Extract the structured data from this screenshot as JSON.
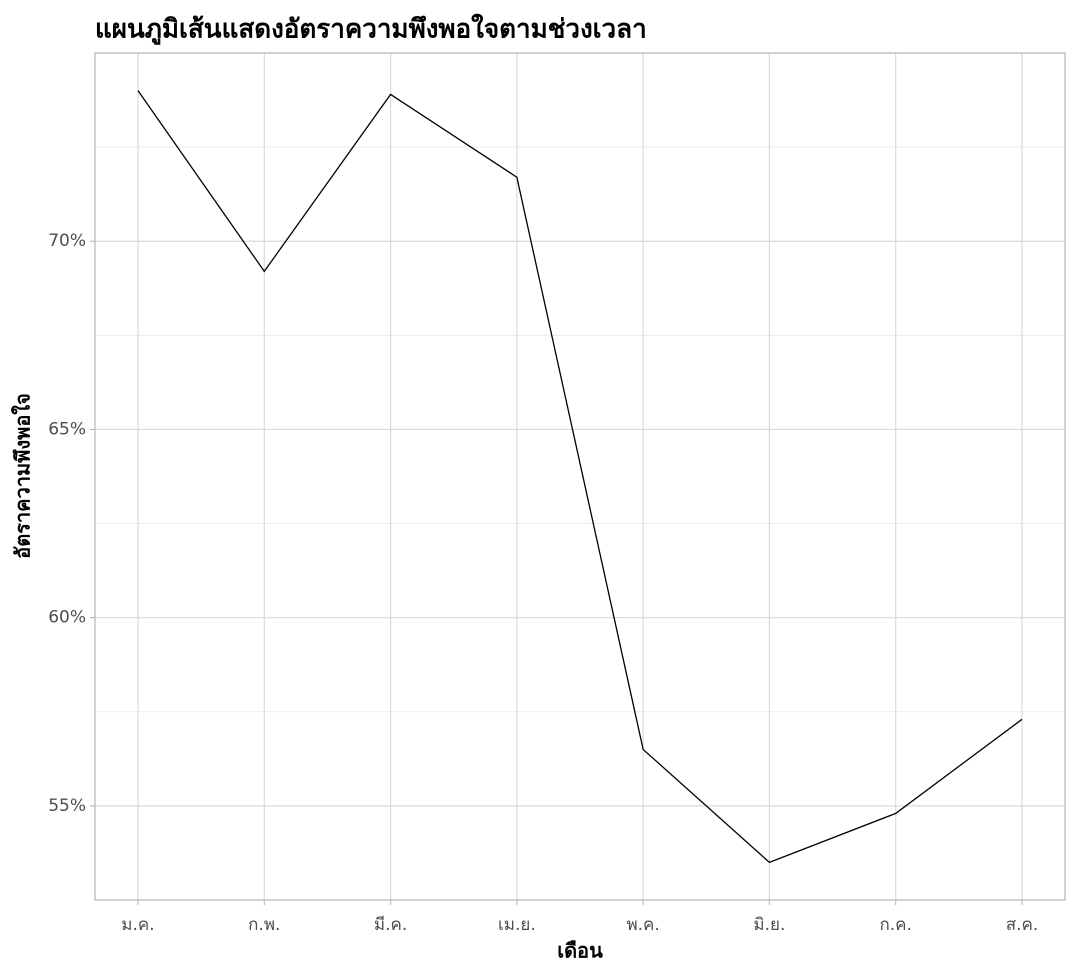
{
  "chart_data": {
    "type": "line",
    "title": "แผนภูมิเส้นแสดงอัตราความพึงพอใจตามช่วงเวลา",
    "x_label": "เดือน",
    "y_label": "อัตราความพึงพอใจ",
    "categories": [
      "ม.ค.",
      "ก.พ.",
      "มี.ค.",
      "เม.ย.",
      "พ.ค.",
      "มิ.ย.",
      "ก.ค.",
      "ส.ค."
    ],
    "values": [
      74.0,
      69.2,
      73.9,
      71.7,
      56.5,
      53.5,
      54.8,
      57.3
    ],
    "color": "#000000",
    "ylim": [
      52.5,
      75
    ],
    "yticks": [
      {
        "value": 55,
        "label": "55%"
      },
      {
        "value": 60,
        "label": "60%"
      },
      {
        "value": 65,
        "label": "65%"
      },
      {
        "value": 70,
        "label": "70%"
      }
    ],
    "minor_yticks": [
      57.5,
      62.5,
      67.5,
      72.5
    ],
    "grid": true
  }
}
